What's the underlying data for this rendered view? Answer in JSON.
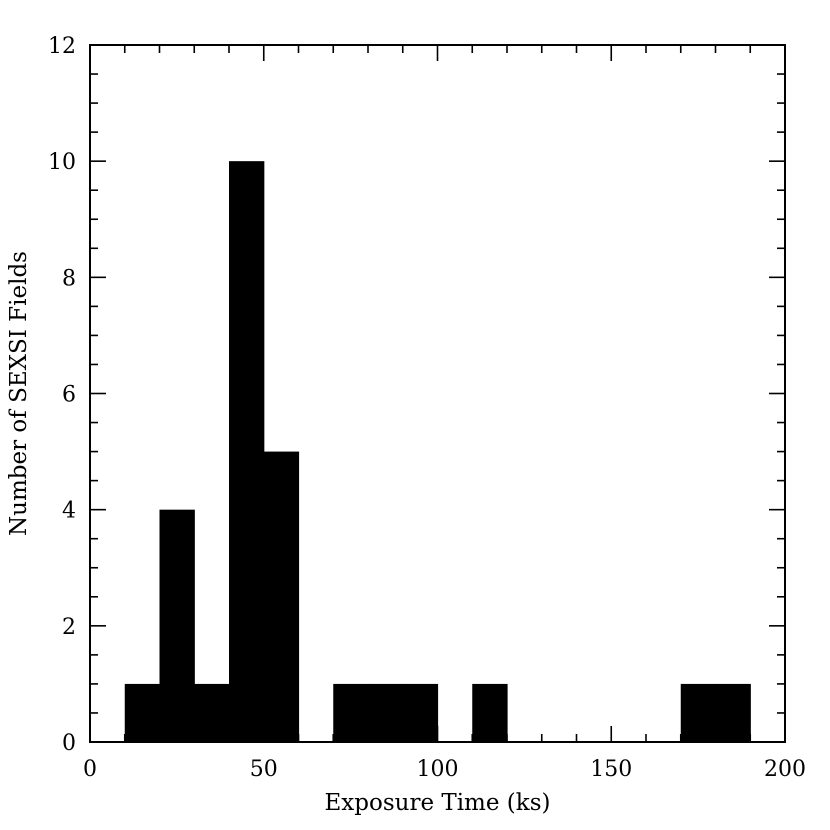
{
  "chart_data": {
    "type": "bar",
    "xlabel": "Exposure Time (ks)",
    "ylabel": "Number of SEXSI Fields",
    "xlim": [
      0,
      200
    ],
    "ylim": [
      0,
      12
    ],
    "x_ticks": [
      0,
      50,
      100,
      150,
      200
    ],
    "y_ticks": [
      0,
      2,
      4,
      6,
      8,
      10,
      12
    ],
    "bin_width": 10,
    "bins": [
      {
        "x0": 10,
        "x1": 20,
        "count": 1
      },
      {
        "x0": 20,
        "x1": 30,
        "count": 4
      },
      {
        "x0": 30,
        "x1": 40,
        "count": 1
      },
      {
        "x0": 40,
        "x1": 50,
        "count": 10
      },
      {
        "x0": 50,
        "x1": 60,
        "count": 5
      },
      {
        "x0": 60,
        "x1": 70,
        "count": 0
      },
      {
        "x0": 70,
        "x1": 80,
        "count": 1
      },
      {
        "x0": 80,
        "x1": 90,
        "count": 1
      },
      {
        "x0": 90,
        "x1": 100,
        "count": 1
      },
      {
        "x0": 100,
        "x1": 110,
        "count": 0
      },
      {
        "x0": 110,
        "x1": 120,
        "count": 1
      },
      {
        "x0": 120,
        "x1": 130,
        "count": 0
      },
      {
        "x0": 130,
        "x1": 140,
        "count": 0
      },
      {
        "x0": 140,
        "x1": 150,
        "count": 0
      },
      {
        "x0": 150,
        "x1": 160,
        "count": 0
      },
      {
        "x0": 160,
        "x1": 170,
        "count": 0
      },
      {
        "x0": 170,
        "x1": 180,
        "count": 1
      },
      {
        "x0": 180,
        "x1": 190,
        "count": 1
      }
    ],
    "bar_color": "#000000",
    "grid": false,
    "legend": "none"
  }
}
